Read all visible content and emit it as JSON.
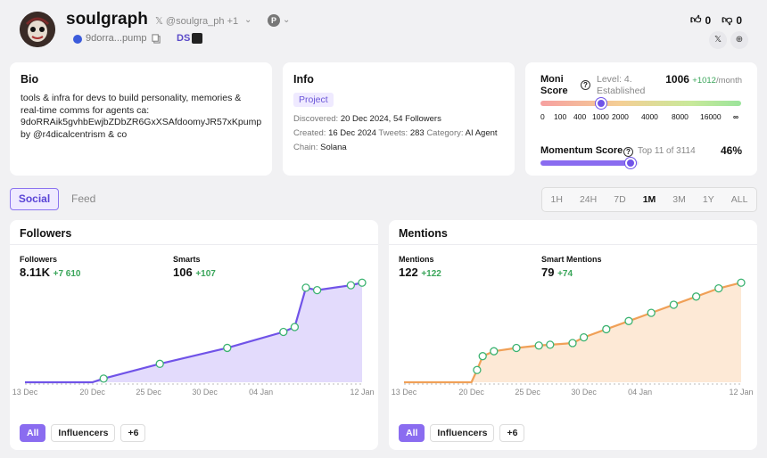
{
  "profile": {
    "name": "soulgraph",
    "handle": "𝕏 @soulgra_ph +1",
    "address": "9dorra...pump",
    "ds_label": "DS"
  },
  "votes": {
    "up": "0",
    "down": "0"
  },
  "bio": {
    "title": "Bio",
    "text": "tools & infra for devs to build personality, memories & real-time comms for agents ca: 9doRRAik5gvhbEwjbZDbZR6GxXSAfdoomyJR57xKpump by @r4dicalcentrism & co"
  },
  "info": {
    "title": "Info",
    "tag": "Project",
    "discovered_label": "Discovered:",
    "discovered_value": "20 Dec 2024, 54 Followers",
    "created_label": "Created:",
    "created_value": "16 Dec 2024",
    "tweets_label": "Tweets:",
    "tweets_value": "283",
    "category_label": "Category:",
    "category_value": "AI Agent",
    "chain_label": "Chain:",
    "chain_value": "Solana"
  },
  "moni": {
    "label": "Moni Score",
    "level": "Level: 4. Established",
    "value": "1006",
    "delta": "+1012",
    "unit": "/month",
    "scale": [
      "0",
      "100",
      "400",
      "1000",
      "2000",
      "4000",
      "8000",
      "16000",
      "∞"
    ],
    "momentum_label": "Momentum Score",
    "momentum_rank": "Top 11 of 3114",
    "momentum_value": "46%",
    "momentum_fraction": 0.46
  },
  "tabs": {
    "social": "Social",
    "feed": "Feed"
  },
  "ranges": [
    "1H",
    "24H",
    "7D",
    "1M",
    "3M",
    "1Y",
    "ALL"
  ],
  "active_range": "1M",
  "followers_card": {
    "title": "Followers",
    "stat1_label": "Followers",
    "stat1_value": "8.11K",
    "stat1_delta": "+7 610",
    "stat2_label": "Smarts",
    "stat2_value": "106",
    "stat2_delta": "+107",
    "pills": [
      "All",
      "Influencers",
      "+6"
    ]
  },
  "mentions_card": {
    "title": "Mentions",
    "stat1_label": "Mentions",
    "stat1_value": "122",
    "stat1_delta": "+122",
    "stat2_label": "Smart Mentions",
    "stat2_value": "79",
    "stat2_delta": "+74",
    "pills": [
      "All",
      "Influencers",
      "+6"
    ]
  },
  "colors": {
    "followers_line": "#7053e8",
    "followers_fill": "#dcd2fb",
    "mentions_line": "#f0a057",
    "mentions_fill": "#fde4cc",
    "marker": "#3cb371"
  },
  "chart_data": [
    {
      "type": "area",
      "x_ticks": [
        "13 Dec",
        "20 Dec",
        "25 Dec",
        "30 Dec",
        "04 Jan",
        "12 Jan"
      ],
      "x": [
        0,
        6,
        7,
        12,
        18,
        23,
        24,
        25,
        26,
        29,
        30
      ],
      "y": [
        0,
        0,
        300,
        1500,
        2800,
        4100,
        4500,
        7700,
        7500,
        7900,
        8110
      ]
    },
    {
      "type": "area",
      "x_ticks": [
        "13 Dec",
        "20 Dec",
        "25 Dec",
        "30 Dec",
        "04 Jan",
        "12 Jan"
      ],
      "x": [
        0,
        6,
        6.5,
        7,
        8,
        10,
        12,
        13,
        15,
        16,
        18,
        20,
        22,
        24,
        26,
        28,
        30
      ],
      "y": [
        0,
        0,
        15,
        32,
        38,
        42,
        45,
        46,
        48,
        55,
        65,
        75,
        85,
        95,
        105,
        115,
        122
      ]
    }
  ]
}
